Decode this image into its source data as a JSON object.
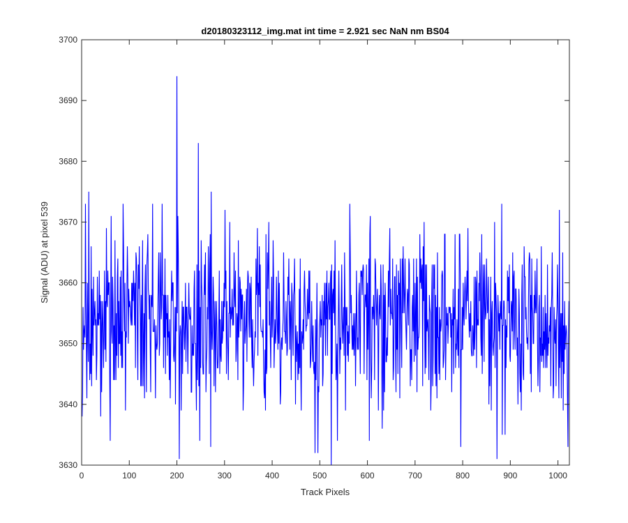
{
  "chart_data": {
    "type": "line",
    "title": "d20180323112_img.mat int time = 2.921 sec  NaN nm BS04",
    "xlabel": "Track Pixels",
    "ylabel": "Signal (ADU) at pixel 539",
    "xlim": [
      0,
      1024
    ],
    "ylim": [
      3630,
      3700
    ],
    "xticks": [
      0,
      100,
      200,
      300,
      400,
      500,
      600,
      700,
      800,
      900,
      1000
    ],
    "yticks": [
      3630,
      3640,
      3650,
      3660,
      3670,
      3680,
      3690,
      3700
    ],
    "grid": false,
    "line_color": "#0000ff",
    "series": [
      {
        "x_start": 1,
        "x_step": 1,
        "count": 1024,
        "mean": 3654,
        "std": 7,
        "min": 3630,
        "max": 3694,
        "notable_points": [
          {
            "x": 1,
            "y": 3638
          },
          {
            "x": 8,
            "y": 3673
          },
          {
            "x": 15,
            "y": 3675
          },
          {
            "x": 60,
            "y": 3634
          },
          {
            "x": 200,
            "y": 3694
          },
          {
            "x": 205,
            "y": 3631
          },
          {
            "x": 245,
            "y": 3683
          },
          {
            "x": 272,
            "y": 3675
          },
          {
            "x": 490,
            "y": 3632
          },
          {
            "x": 496,
            "y": 3632
          },
          {
            "x": 524,
            "y": 3630
          },
          {
            "x": 872,
            "y": 3631
          },
          {
            "x": 1003,
            "y": 3672
          },
          {
            "x": 1021,
            "y": 3633
          }
        ]
      }
    ]
  }
}
